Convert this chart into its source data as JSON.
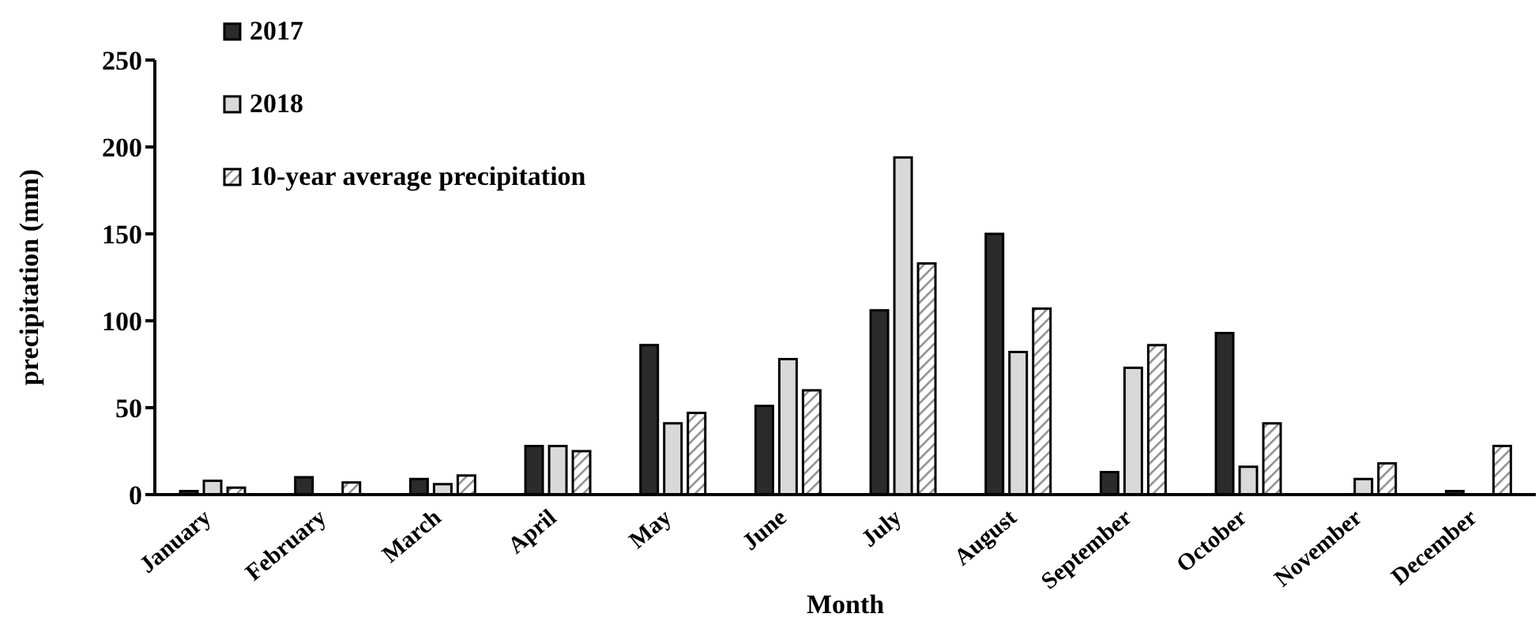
{
  "chart_data": {
    "type": "bar",
    "xlabel": "Month",
    "ylabel": "precipitation (mm)",
    "categories": [
      "January",
      "February",
      "March",
      "April",
      "May",
      "June",
      "July",
      "August",
      "September",
      "October",
      "November",
      "December"
    ],
    "series": [
      {
        "name": "2017",
        "color": "#2b2b2b",
        "values": [
          2,
          10,
          9,
          28,
          86,
          51,
          106,
          150,
          13,
          93,
          0,
          2
        ]
      },
      {
        "name": "2018",
        "color": "#d9d9d9",
        "values": [
          8,
          0,
          6,
          28,
          41,
          78,
          194,
          82,
          73,
          16,
          9,
          0
        ]
      },
      {
        "name": "10-year average precipitation",
        "color": "#8c8c8c",
        "values": [
          4,
          7,
          11,
          25,
          47,
          60,
          133,
          107,
          86,
          41,
          18,
          28
        ]
      }
    ],
    "ylim": [
      0,
      250
    ],
    "yticks": [
      0,
      50,
      100,
      150,
      200,
      250
    ],
    "grid": false,
    "legend": "top left"
  }
}
